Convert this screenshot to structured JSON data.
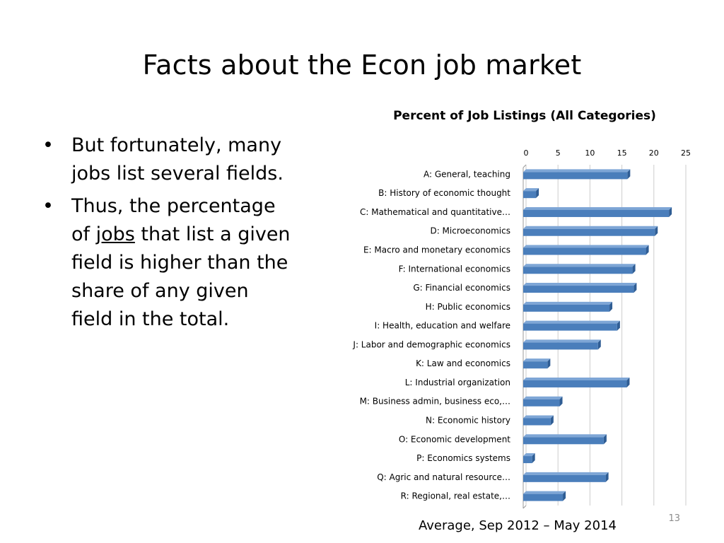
{
  "slide": {
    "title": "Facts about the Econ job market",
    "bullets": [
      {
        "pre": "But fortunately, many jobs list several fields.",
        "link": "",
        "post": ""
      },
      {
        "pre": "Thus, the percentage of ",
        "link": "jobs",
        "post": " that list a given field is higher than the share of any given field in the total."
      }
    ],
    "caption": "Average, Sep 2012 – May 2014",
    "page_number": "13"
  },
  "colors": {
    "bar_front": "#4a7ebb",
    "bar_side": "#2f5d94",
    "bar_top": "#7ea6d6",
    "grid": "#cccccc"
  },
  "chart_data": {
    "type": "bar",
    "orientation": "horizontal",
    "title": "Percent of Job Listings (All Categories)",
    "xlim": [
      0,
      25
    ],
    "xticks": [
      "0",
      "5",
      "10",
      "15",
      "20",
      "25"
    ],
    "tick_values": [
      0,
      5,
      10,
      15,
      20,
      25
    ],
    "categories": [
      "A: General, teaching",
      "B: History of economic thought",
      "C: Mathematical and quantitative…",
      "D: Microeconomics",
      "E: Macro and monetary economics",
      "F: International economics",
      "G: Financial economics",
      "H: Public economics",
      "I: Health, education and welfare",
      "J: Labor and demographic economics",
      "K: Law and economics",
      "L: Industrial organization",
      "M: Business admin, business eco,…",
      "N: Economic history",
      "O: Economic development",
      "P: Economics systems",
      "Q: Agric and natural resource…",
      "R: Regional, real estate,…"
    ],
    "values": [
      16.3,
      2.0,
      22.8,
      20.6,
      19.2,
      17.1,
      17.3,
      13.5,
      14.7,
      11.7,
      3.8,
      16.2,
      5.7,
      4.3,
      12.6,
      1.4,
      12.9,
      6.2
    ],
    "grid": true
  }
}
